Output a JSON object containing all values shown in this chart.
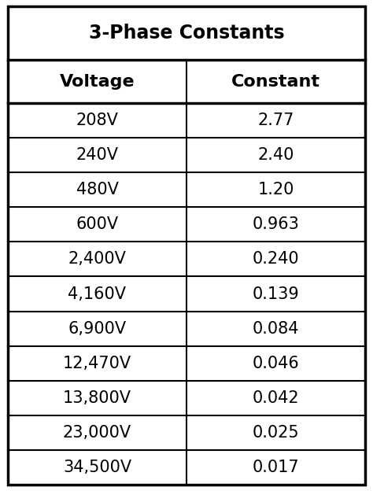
{
  "title": "3-Phase Constants",
  "col_headers": [
    "Voltage",
    "Constant"
  ],
  "rows": [
    [
      "208V",
      "2.77"
    ],
    [
      "240V",
      "2.40"
    ],
    [
      "480V",
      "1.20"
    ],
    [
      "600V",
      "0.963"
    ],
    [
      "2,400V",
      "0.240"
    ],
    [
      "4,160V",
      "0.139"
    ],
    [
      "6,900V",
      "0.084"
    ],
    [
      "12,470V",
      "0.046"
    ],
    [
      "13,800V",
      "0.042"
    ],
    [
      "23,000V",
      "0.025"
    ],
    [
      "34,500V",
      "0.017"
    ]
  ],
  "bg_color": "#ffffff",
  "border_color": "#000000",
  "title_fontsize": 17,
  "header_fontsize": 16,
  "data_fontsize": 15,
  "figsize": [
    4.74,
    6.24
  ],
  "dpi": 100
}
